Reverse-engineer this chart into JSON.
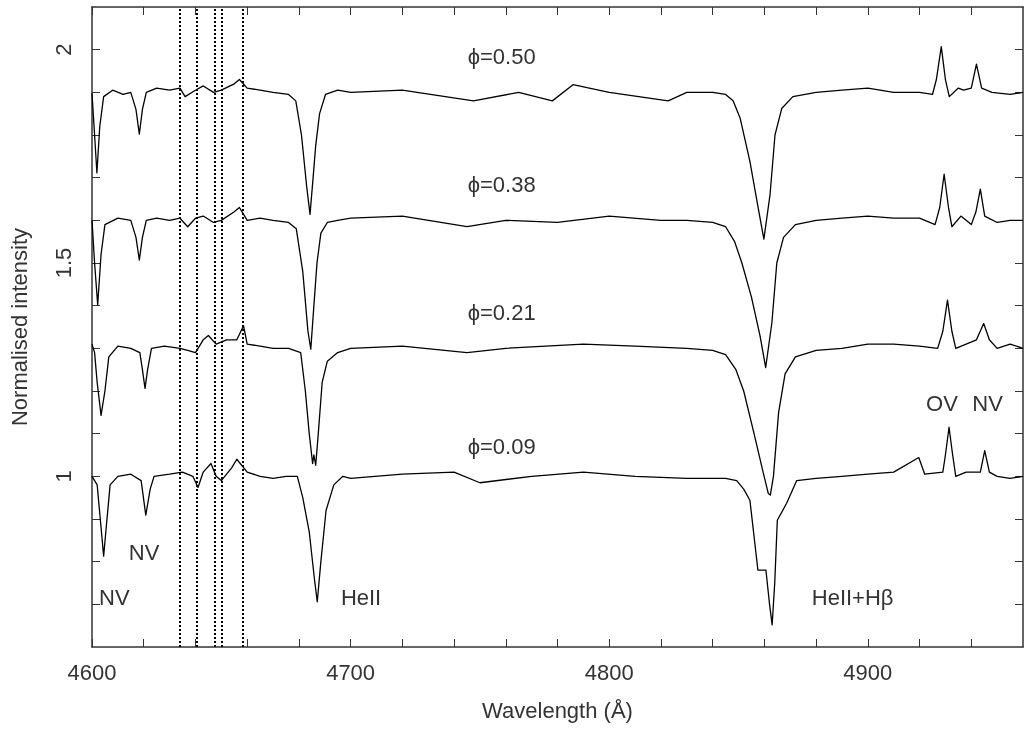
{
  "chart_data": {
    "type": "line",
    "xlabel": "Wavelength (Å)",
    "ylabel": "Normalised intensity",
    "xlim": [
      4600,
      4960
    ],
    "ylim": [
      0.6,
      2.1
    ],
    "xticks": [
      4600,
      {
        "value": 4620,
        "label": null
      },
      {
        "value": 4640,
        "label": null
      },
      {
        "value": 4660,
        "label": null
      },
      {
        "value": 4680,
        "label": null
      },
      4700,
      {
        "value": 4720,
        "label": null
      },
      {
        "value": 4740,
        "label": null
      },
      {
        "value": 4760,
        "label": null
      },
      {
        "value": 4780,
        "label": null
      },
      4800,
      {
        "value": 4820,
        "label": null
      },
      {
        "value": 4840,
        "label": null
      },
      {
        "value": 4860,
        "label": null
      },
      {
        "value": 4880,
        "label": null
      },
      4900,
      {
        "value": 4920,
        "label": null
      },
      {
        "value": 4940,
        "label": null
      }
    ],
    "yticks": [
      {
        "value": 0.7,
        "label": null
      },
      {
        "value": 0.8,
        "label": null
      },
      {
        "value": 0.9,
        "label": null
      },
      1,
      {
        "value": 1.1,
        "label": null
      },
      {
        "value": 1.2,
        "label": null
      },
      {
        "value": 1.3,
        "label": null
      },
      {
        "value": 1.4,
        "label": null
      },
      1.5,
      {
        "value": 1.6,
        "label": null
      },
      {
        "value": 1.7,
        "label": null
      },
      {
        "value": 1.8,
        "label": null
      },
      {
        "value": 1.9,
        "label": null
      },
      2
    ],
    "marker": "none",
    "line_style": "solid",
    "series": [
      {
        "name": "ϕ=0.50",
        "color": "#000000",
        "x": [
          4600,
          4601,
          4601.9,
          4603,
          4604.5,
          4608,
          4612,
          4615,
          4617,
          4618.3,
          4619.5,
          4621,
          4625,
          4630,
          4634,
          4636,
          4640,
          4643,
          4647,
          4650,
          4655,
          4657,
          4660,
          4665,
          4670,
          4676,
          4678.8,
          4681,
          4683,
          4684.3,
          4685.5,
          4686.5,
          4688,
          4690.3,
          4695,
          4700,
          4720,
          4747.5,
          4765,
          4778,
          4786,
          4800,
          4822.8,
          4830,
          4840,
          4845,
          4847.9,
          4850.6,
          4854.4,
          4857.6,
          4859.8,
          4862.2,
          4864.1,
          4866.7,
          4871,
          4880,
          4890,
          4900,
          4910,
          4920,
          4925,
          4926.5,
          4928.4,
          4930,
          4931.5,
          4935,
          4937,
          4940,
          4942,
          4944,
          4948,
          4955,
          4960
        ],
        "values": [
          1.898,
          1.8,
          1.711,
          1.82,
          1.89,
          1.905,
          1.895,
          1.9,
          1.86,
          1.802,
          1.86,
          1.9,
          1.91,
          1.905,
          1.91,
          1.89,
          1.905,
          1.915,
          1.9,
          1.905,
          1.92,
          1.93,
          1.91,
          1.905,
          1.9,
          1.895,
          1.88,
          1.8,
          1.68,
          1.614,
          1.7,
          1.775,
          1.85,
          1.895,
          1.905,
          1.9,
          1.905,
          1.88,
          1.9,
          1.88,
          1.918,
          1.9,
          1.88,
          1.9,
          1.9,
          1.895,
          1.88,
          1.84,
          1.738,
          1.629,
          1.556,
          1.661,
          1.8,
          1.862,
          1.89,
          1.9,
          1.905,
          1.91,
          1.9,
          1.9,
          1.895,
          1.93,
          2.007,
          1.93,
          1.89,
          1.91,
          1.905,
          1.91,
          1.966,
          1.91,
          1.9,
          1.895,
          1.9
        ]
      },
      {
        "name": "ϕ=0.38",
        "color": "#000000",
        "x": [
          4600,
          4601,
          4602.2,
          4603.5,
          4605,
          4610,
          4615,
          4617,
          4618.3,
          4619.5,
          4621,
          4625,
          4630,
          4634,
          4637,
          4640,
          4643,
          4647,
          4650,
          4655,
          4657,
          4660,
          4665,
          4670,
          4676,
          4679,
          4681.5,
          4683.5,
          4684.6,
          4685.8,
          4687,
          4688.5,
          4691,
          4695,
          4700,
          4720,
          4745,
          4760,
          4780,
          4800,
          4820,
          4830,
          4840,
          4845,
          4848.5,
          4851.3,
          4855,
          4858.3,
          4860.5,
          4862.9,
          4864.8,
          4867.4,
          4872,
          4880,
          4890,
          4900,
          4910,
          4920,
          4926,
          4927.8,
          4929.5,
          4931.2,
          4932.5,
          4936,
          4940,
          4941.8,
          4943.5,
          4945.2,
          4950,
          4955,
          4960
        ],
        "values": [
          1.6,
          1.5,
          1.402,
          1.52,
          1.59,
          1.605,
          1.6,
          1.56,
          1.507,
          1.56,
          1.6,
          1.605,
          1.6,
          1.605,
          1.585,
          1.605,
          1.61,
          1.595,
          1.6,
          1.62,
          1.63,
          1.6,
          1.605,
          1.6,
          1.595,
          1.58,
          1.48,
          1.34,
          1.298,
          1.4,
          1.5,
          1.57,
          1.595,
          1.6,
          1.605,
          1.61,
          1.585,
          1.6,
          1.595,
          1.61,
          1.6,
          1.6,
          1.595,
          1.585,
          1.55,
          1.5,
          1.42,
          1.33,
          1.255,
          1.36,
          1.5,
          1.56,
          1.59,
          1.6,
          1.605,
          1.61,
          1.605,
          1.605,
          1.59,
          1.63,
          1.708,
          1.63,
          1.585,
          1.61,
          1.59,
          1.62,
          1.673,
          1.61,
          1.595,
          1.6,
          1.6
        ]
      },
      {
        "name": "ϕ=0.21",
        "color": "#000000",
        "x": [
          4600,
          4601,
          4602,
          4603.5,
          4605,
          4606.5,
          4610,
          4615,
          4618.5,
          4619.5,
          4620.5,
          4621.5,
          4623,
          4628,
          4634,
          4637,
          4640,
          4643,
          4645,
          4648,
          4652,
          4656,
          4658.6,
          4660,
          4665,
          4670,
          4676,
          4680.7,
          4682.5,
          4684,
          4685.3,
          4685.8,
          4686.5,
          4687.5,
          4689,
          4691,
          4695,
          4700,
          4720,
          4745,
          4760,
          4790,
          4810,
          4830,
          4840,
          4845,
          4849,
          4852,
          4856,
          4859.5,
          4861.5,
          4862.3,
          4863.5,
          4865.5,
          4868,
          4872,
          4880,
          4890,
          4900,
          4910,
          4920,
          4927,
          4929,
          4930.8,
          4932.5,
          4934,
          4938,
          4942,
          4944.8,
          4947,
          4950,
          4955,
          4960
        ],
        "values": [
          1.31,
          1.29,
          1.22,
          1.143,
          1.2,
          1.28,
          1.305,
          1.3,
          1.29,
          1.25,
          1.206,
          1.25,
          1.3,
          1.305,
          1.3,
          1.295,
          1.29,
          1.32,
          1.33,
          1.31,
          1.32,
          1.32,
          1.353,
          1.31,
          1.305,
          1.3,
          1.3,
          1.29,
          1.2,
          1.1,
          1.03,
          1.05,
          1.026,
          1.1,
          1.22,
          1.27,
          1.29,
          1.3,
          1.305,
          1.29,
          1.3,
          1.31,
          1.305,
          1.3,
          1.295,
          1.285,
          1.25,
          1.2,
          1.1,
          1.01,
          0.96,
          0.956,
          1.0,
          1.15,
          1.24,
          1.28,
          1.295,
          1.3,
          1.31,
          1.31,
          1.305,
          1.3,
          1.34,
          1.413,
          1.34,
          1.3,
          1.31,
          1.32,
          1.358,
          1.32,
          1.3,
          1.31,
          1.3
        ]
      },
      {
        "name": "ϕ=0.09",
        "color": "#000000",
        "x": [
          4600,
          4602,
          4603.5,
          4604.5,
          4605.5,
          4607,
          4610,
          4615,
          4619,
          4620.8,
          4622.5,
          4624,
          4630,
          4635,
          4639,
          4641,
          4643,
          4646,
          4648,
          4650,
          4654,
          4656,
          4660,
          4665,
          4670,
          4675,
          4679.4,
          4681.5,
          4684,
          4686,
          4687.1,
          4688.5,
          4690.5,
          4693.5,
          4697,
          4700,
          4720,
          4740,
          4750,
          4770,
          4790,
          4810,
          4830,
          4845,
          4849.3,
          4852,
          4854.4,
          4857.5,
          4860.6,
          4862,
          4863,
          4864,
          4865,
          4868.6,
          4872.5,
          4880,
          4890,
          4900,
          4910,
          4919.7,
          4922,
          4929,
          4930,
          4931.4,
          4932.8,
          4934,
          4938,
          4943.5,
          4945.2,
          4947,
          4950,
          4955,
          4960
        ],
        "values": [
          1.0,
          0.98,
          0.88,
          0.813,
          0.88,
          0.98,
          1.0,
          1.005,
          0.99,
          0.909,
          0.97,
          1.0,
          1.005,
          1.01,
          1.0,
          0.974,
          1.01,
          1.03,
          1.0,
          0.99,
          1.02,
          1.04,
          1.01,
          1.0,
          0.995,
          1.0,
          1.0,
          0.95,
          0.87,
          0.76,
          0.706,
          0.8,
          0.92,
          0.98,
          1.0,
          0.995,
          1.005,
          1.01,
          0.985,
          1.0,
          1.01,
          1.0,
          0.995,
          0.995,
          0.99,
          0.97,
          0.944,
          0.78,
          0.78,
          0.7,
          0.652,
          0.75,
          0.897,
          0.937,
          0.99,
          0.995,
          1.0,
          1.005,
          1.01,
          1.044,
          1.005,
          1.01,
          1.05,
          1.115,
          1.05,
          1.0,
          1.01,
          1.01,
          1.06,
          1.01,
          1.0,
          0.995,
          1.0
        ]
      }
    ],
    "ref_lines": [
      {
        "axis": "x",
        "value": 4634,
        "color": "#000000",
        "line_style": "dotted"
      },
      {
        "axis": "x",
        "value": 4640.5,
        "color": "#000000",
        "line_style": "dotted"
      },
      {
        "axis": "x",
        "value": 4647.4,
        "color": "#000000",
        "line_style": "dotted"
      },
      {
        "axis": "x",
        "value": 4650.2,
        "color": "#000000",
        "line_style": "dotted"
      },
      {
        "axis": "x",
        "value": 4658.3,
        "color": "#000000",
        "line_style": "dotted"
      }
    ],
    "annotations": [
      "NV",
      "NV",
      "HeII",
      "HeII+Hβ",
      "OV",
      "NV"
    ]
  }
}
